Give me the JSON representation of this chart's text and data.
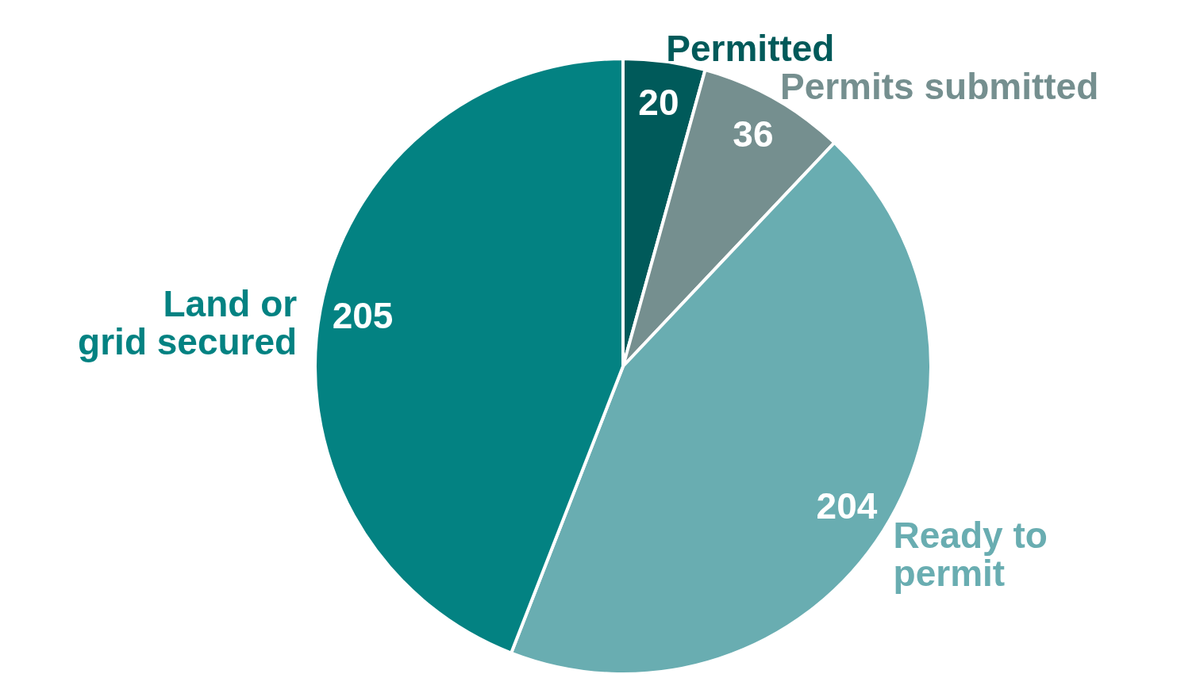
{
  "chart_data": {
    "type": "pie",
    "categories": [
      "Permitted",
      "Permits submitted",
      "Ready to\npermit",
      "Land or\ngrid secured"
    ],
    "values": [
      20,
      36,
      204,
      205
    ],
    "colors": [
      "#005a5a",
      "#758f8f",
      "#69adb1",
      "#038282"
    ],
    "data_labels": true
  }
}
